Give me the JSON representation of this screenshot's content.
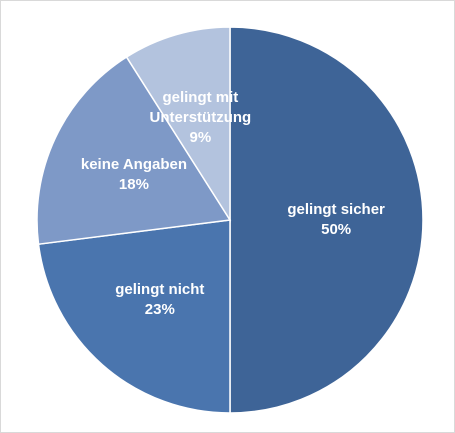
{
  "chart_data": {
    "type": "pie",
    "categories": [
      "gelingt sicher",
      "gelingt nicht",
      "keine Angaben",
      "gelingt mit Unterstützung"
    ],
    "values": [
      50,
      23,
      18,
      9
    ],
    "value_labels": [
      "50%",
      "23%",
      "18%",
      "9%"
    ],
    "colors": [
      "#3e6497",
      "#4a75ae",
      "#7e99c7",
      "#b3c3de"
    ]
  }
}
